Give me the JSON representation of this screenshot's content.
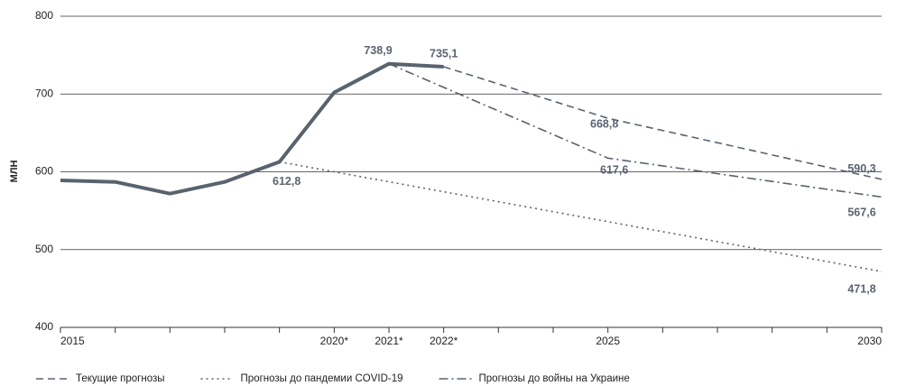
{
  "chart_data": {
    "type": "line",
    "y_label": "МЛН",
    "xlim": [
      2015,
      2030
    ],
    "xticks": [
      2015,
      {
        "value": 2020,
        "label": "2020*"
      },
      {
        "value": 2021,
        "label": "2021*"
      },
      {
        "value": 2022,
        "label": "2022*"
      },
      2025,
      2030
    ],
    "xminorticks": [
      2016,
      2017,
      2018,
      2019,
      2023,
      2024,
      2026,
      2027,
      2028,
      2029
    ],
    "ylim": [
      400,
      800
    ],
    "yticks": [
      400,
      500,
      600,
      700,
      800
    ],
    "grid": true,
    "legend": "bottom",
    "series": [
      {
        "color": "#59636e",
        "dash": "solid",
        "x": [
          2015,
          2016,
          2017,
          2018,
          2019,
          2020,
          2021,
          2022
        ],
        "values": [
          589,
          587,
          572,
          587,
          612.8,
          702,
          738.9,
          735.1
        ],
        "value_labels": [
          null,
          null,
          null,
          null,
          "612,8",
          null,
          "738,9",
          "735,1"
        ]
      },
      {
        "name": "Текущие прогнозы",
        "color": "#59636e",
        "dash": "dashed",
        "x": [
          2022,
          2025,
          2030
        ],
        "values": [
          735.1,
          668.8,
          590.3
        ],
        "value_labels": [
          null,
          "668,8",
          "590,3"
        ]
      },
      {
        "name": "Прогнозы до пандемии COVID-19",
        "color": "#59636e",
        "dash": "dotted",
        "x": [
          2019,
          2030
        ],
        "values": [
          612.8,
          471.8
        ],
        "value_labels": [
          null,
          "471,8"
        ]
      },
      {
        "name": "Прогнозы до войны на Украине",
        "color": "#59636e",
        "dash": "dashdot",
        "x": [
          2021,
          2025,
          2030
        ],
        "values": [
          738.9,
          617.6,
          567.6
        ],
        "value_labels": [
          null,
          "617,6",
          "567,6"
        ]
      }
    ]
  }
}
